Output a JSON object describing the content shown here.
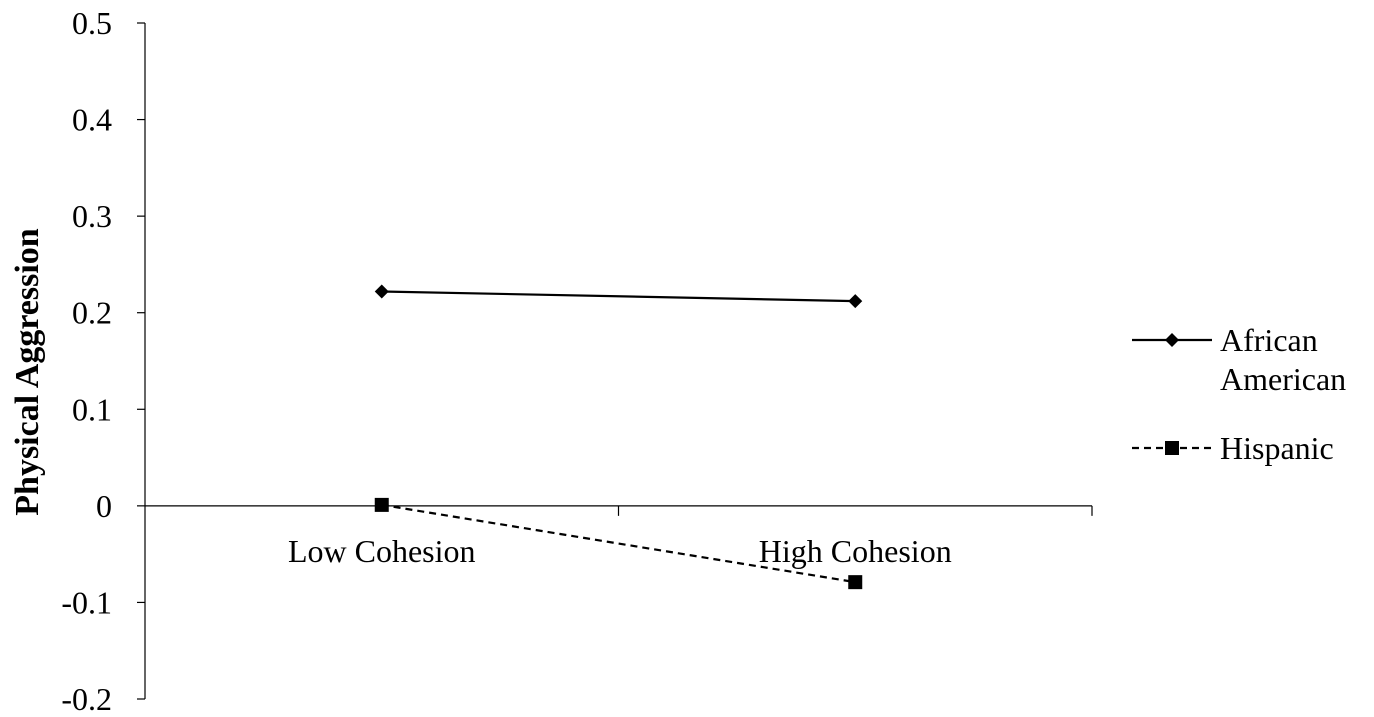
{
  "chart_data": {
    "type": "line",
    "ylabel": "Physical Aggression",
    "xlabel": "",
    "categories": [
      "Low Cohesion",
      "High Cohesion"
    ],
    "ylim": [
      -0.2,
      0.5
    ],
    "yticks": [
      "0.5",
      "0.4",
      "0.3",
      "0.2",
      "0.1",
      "0",
      "-0.1",
      "-0.2"
    ],
    "ytick_values": [
      0.5,
      0.4,
      0.3,
      0.2,
      0.1,
      0,
      -0.1,
      -0.2
    ],
    "grid": false,
    "legend_position": "right",
    "series": [
      {
        "name": "African American",
        "name_lines": [
          "African",
          "American"
        ],
        "values": [
          0.222,
          0.212
        ],
        "marker": "diamond",
        "line_style": "solid",
        "color": "#000000"
      },
      {
        "name": "Hispanic",
        "name_lines": [
          "Hispanic"
        ],
        "values": [
          0.001,
          -0.079
        ],
        "marker": "square",
        "line_style": "dashed",
        "color": "#000000"
      }
    ]
  }
}
